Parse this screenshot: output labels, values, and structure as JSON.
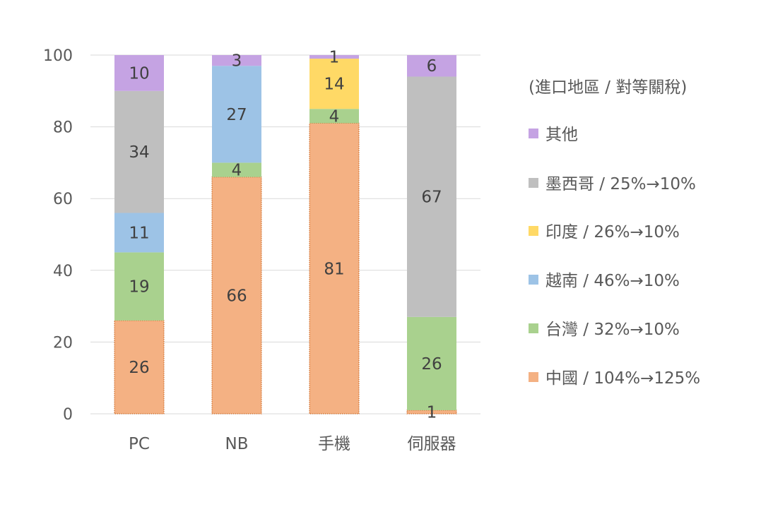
{
  "chart_data": {
    "type": "bar",
    "stacked": true,
    "title": "",
    "legend_title": "(進口地區 / 對等關稅)",
    "legend_position": "right",
    "categories": [
      "PC",
      "NB",
      "手機",
      "伺服器"
    ],
    "ylim": [
      0,
      100
    ],
    "yticks": [
      0,
      20,
      40,
      60,
      80,
      100
    ],
    "grid": true,
    "series": [
      {
        "name": "中國 / 104%→125%",
        "color": "#F4B183",
        "values": [
          26,
          66,
          81,
          1
        ]
      },
      {
        "name": "台灣 / 32%→10%",
        "color": "#A9D18E",
        "values": [
          19,
          4,
          4,
          26
        ]
      },
      {
        "name": "越南 / 46%→10%",
        "color": "#9DC3E6",
        "values": [
          11,
          27,
          0,
          0
        ]
      },
      {
        "name": "印度 / 26%→10%",
        "color": "#FFD966",
        "values": [
          0,
          0,
          14,
          0
        ]
      },
      {
        "name": "墨西哥 / 25%→10%",
        "color": "#BFBFBF",
        "values": [
          34,
          0,
          0,
          67
        ]
      },
      {
        "name": "其他",
        "color": "#C5A3E3",
        "values": [
          10,
          3,
          1,
          6
        ]
      }
    ]
  }
}
